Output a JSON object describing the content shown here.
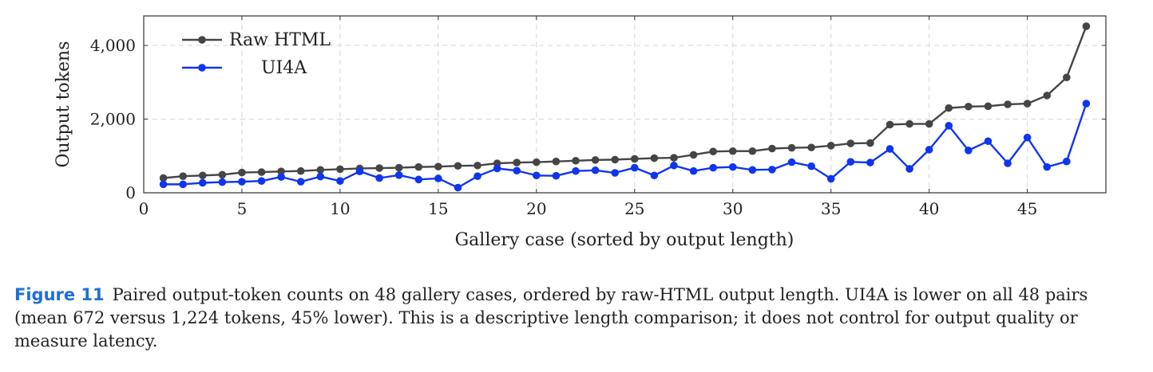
{
  "chart_data": {
    "type": "line",
    "xlabel": "Gallery case (sorted by output length)",
    "ylabel": "Output tokens",
    "xlim": [
      0,
      49
    ],
    "ylim": [
      0,
      4800
    ],
    "xticks": [
      "0",
      "5",
      "10",
      "15",
      "20",
      "25",
      "30",
      "35",
      "40",
      "45"
    ],
    "xtick_values": [
      0,
      5,
      10,
      15,
      20,
      25,
      30,
      35,
      40,
      45
    ],
    "yticks": [
      "0",
      "2,000",
      "4,000"
    ],
    "ytick_values": [
      0,
      2000,
      4000
    ],
    "grid": true,
    "legend_position": "top-left",
    "x": [
      1,
      2,
      3,
      4,
      5,
      6,
      7,
      8,
      9,
      10,
      11,
      12,
      13,
      14,
      15,
      16,
      17,
      18,
      19,
      20,
      21,
      22,
      23,
      24,
      25,
      26,
      27,
      28,
      29,
      30,
      31,
      32,
      33,
      34,
      35,
      36,
      37,
      38,
      39,
      40,
      41,
      42,
      43,
      44,
      45,
      46,
      47,
      48
    ],
    "series": [
      {
        "name": "Raw HTML",
        "color": "#454545",
        "values": [
          400,
          450,
          470,
          490,
          550,
          560,
          580,
          590,
          620,
          640,
          660,
          670,
          680,
          700,
          710,
          730,
          740,
          800,
          820,
          830,
          850,
          870,
          890,
          900,
          920,
          940,
          950,
          1030,
          1120,
          1130,
          1130,
          1200,
          1220,
          1230,
          1280,
          1340,
          1350,
          1850,
          1870,
          1870,
          2300,
          2340,
          2350,
          2400,
          2420,
          2640,
          3130,
          4520
        ]
      },
      {
        "name": "UI4A",
        "color": "#0f35f0",
        "values": [
          230,
          230,
          270,
          290,
          300,
          320,
          430,
          300,
          440,
          320,
          580,
          400,
          480,
          360,
          390,
          140,
          450,
          660,
          600,
          470,
          460,
          590,
          610,
          540,
          680,
          470,
          740,
          590,
          680,
          700,
          620,
          630,
          830,
          720,
          380,
          840,
          820,
          1190,
          650,
          1170,
          1820,
          1150,
          1400,
          800,
          1500,
          700,
          850,
          2420
        ]
      }
    ]
  },
  "caption": {
    "label": "Figure 11",
    "text": "Paired output-token counts on 48 gallery cases, ordered by raw-HTML output length. UI4A is lower on all 48 pairs (mean 672 versus 1,224 tokens, 45% lower). This is a descriptive length comparison; it does not control for output quality or measure latency."
  }
}
